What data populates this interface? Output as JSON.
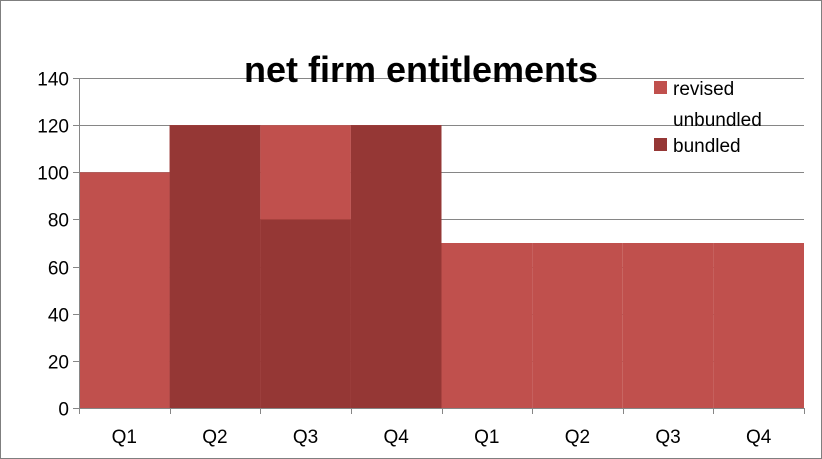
{
  "chart_data": {
    "type": "bar",
    "title": "net firm entitlements",
    "xlabel": "",
    "ylabel": "",
    "categories": [
      "Q1",
      "Q2",
      "Q3",
      "Q4",
      "Q1",
      "Q2",
      "Q3",
      "Q4"
    ],
    "ylim": [
      0,
      140
    ],
    "yticks": [
      0,
      20,
      40,
      60,
      80,
      100,
      120,
      140
    ],
    "grid": true,
    "legend_position": "top-right",
    "series": [
      {
        "name": "revised unbundled",
        "color": "#c0504d",
        "values": [
          100,
          120,
          120,
          120,
          70,
          70,
          70,
          70
        ]
      },
      {
        "name": "bundled",
        "color": "#953735",
        "values": [
          0,
          120,
          80,
          120,
          0,
          0,
          0,
          0
        ]
      }
    ]
  }
}
